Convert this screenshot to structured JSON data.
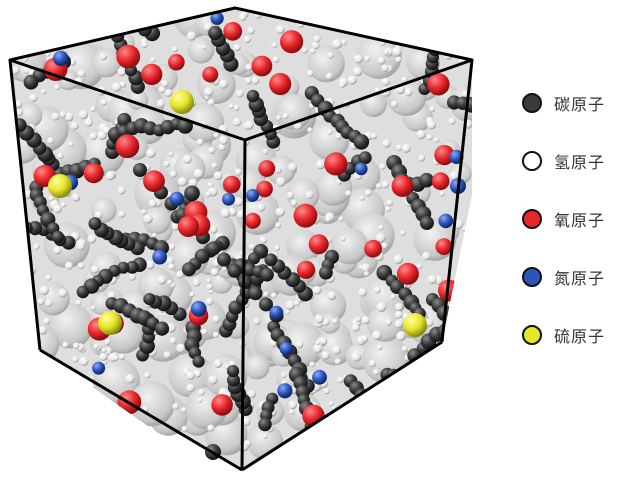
{
  "legend": {
    "items": [
      {
        "label": "碳原子",
        "color": "#3a3a3a"
      },
      {
        "label": "氢原子",
        "color": "#ffffff"
      },
      {
        "label": "氧原子",
        "color": "#e8262b"
      },
      {
        "label": "氮原子",
        "color": "#2a56b8"
      },
      {
        "label": "硫原子",
        "color": "#e6e62a"
      }
    ]
  },
  "colors": {
    "carbon": "#3a3a3a",
    "hydrogen": "#ffffff",
    "oxygen": "#e8262b",
    "nitrogen": "#2a56b8",
    "sulfur": "#e6e62a",
    "pore_surface": "#c8c8c8",
    "box_edge": "#000000"
  }
}
